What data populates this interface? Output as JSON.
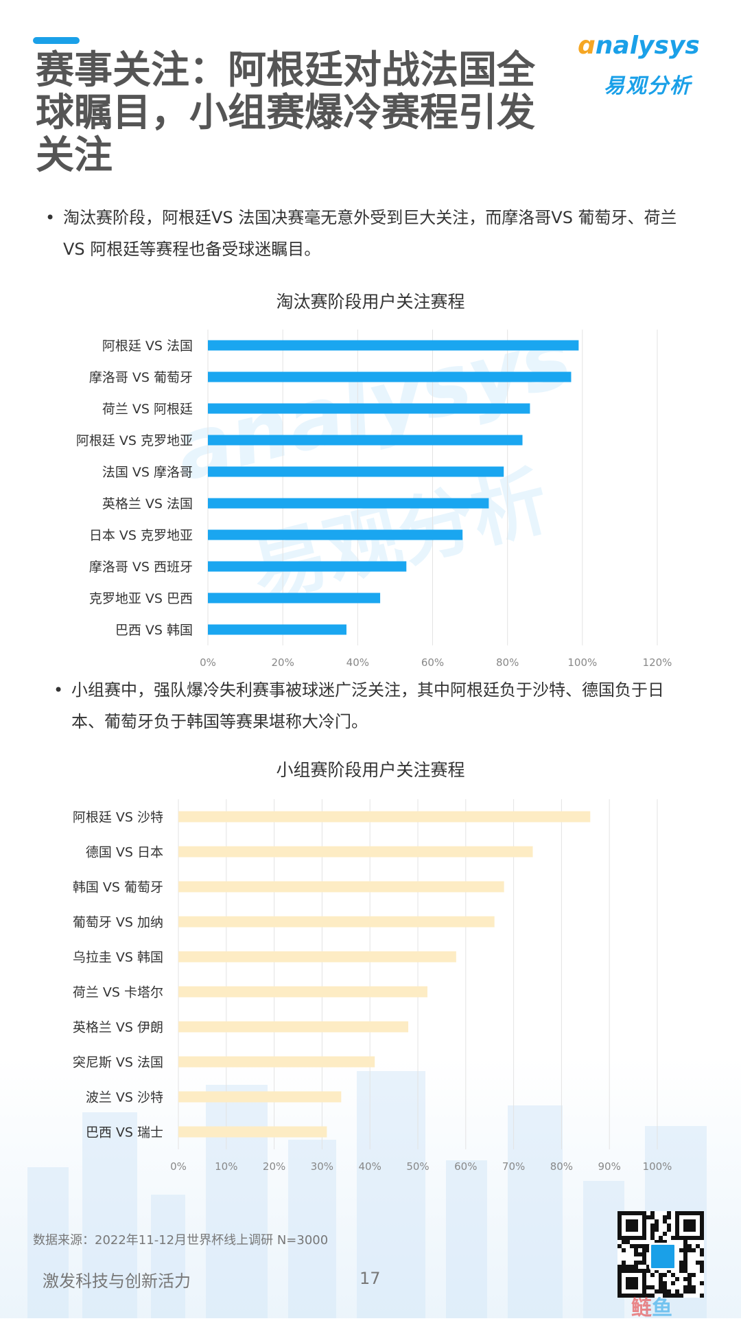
{
  "header": {
    "title": "赛事关注：阿根廷对战法国全球瞩目，小组赛爆冷赛程引发关注",
    "logo_en": "nalysys",
    "logo_cn": "易观分析",
    "accent_color": "#1aa0e8"
  },
  "bullets": [
    "淘汰赛阶段，阿根廷VS 法国决赛毫无意外受到巨大关注，而摩洛哥VS 葡萄牙、荷兰 VS 阿根廷等赛程也备受球迷瞩目。",
    "小组赛中，强队爆冷失利赛事被球迷广泛关注，其中阿根廷负于沙特、德国负于日本、葡萄牙负于韩国等赛果堪称大冷门。"
  ],
  "watermark": {
    "en": "analysys",
    "cn": "易观分析"
  },
  "chart_data": [
    {
      "type": "bar",
      "orientation": "horizontal",
      "title": "淘汰赛阶段用户关注赛程",
      "categories": [
        "阿根廷 VS 法国",
        "摩洛哥 VS 葡萄牙",
        "荷兰 VS 阿根廷",
        "阿根廷 VS 克罗地亚",
        "法国 VS 摩洛哥",
        "英格兰 VS 法国",
        "日本 VS 克罗地亚",
        "摩洛哥 VS 西班牙",
        "克罗地亚 VS 巴西",
        "巴西 VS 韩国"
      ],
      "values": [
        0.99,
        0.97,
        0.86,
        0.84,
        0.79,
        0.75,
        0.68,
        0.53,
        0.46,
        0.37
      ],
      "xlim": [
        0,
        1.2
      ],
      "ticks": [
        0,
        0.2,
        0.4,
        0.6,
        0.8,
        1.0,
        1.2
      ],
      "tick_labels": [
        "0%",
        "20%",
        "40%",
        "60%",
        "80%",
        "100%",
        "120%"
      ],
      "color": "#1aa6f0",
      "grid": true
    },
    {
      "type": "bar",
      "orientation": "horizontal",
      "title": "小组赛阶段用户关注赛程",
      "categories": [
        "阿根廷 VS 沙特",
        "德国 VS 日本",
        "韩国 VS 葡萄牙",
        "葡萄牙 VS 加纳",
        "乌拉圭 VS 韩国",
        "荷兰 VS 卡塔尔",
        "英格兰 VS 伊朗",
        "突尼斯 VS 法国",
        "波兰 VS 沙特",
        "巴西 VS 瑞士"
      ],
      "values": [
        0.86,
        0.74,
        0.68,
        0.66,
        0.58,
        0.52,
        0.48,
        0.41,
        0.34,
        0.31
      ],
      "xlim": [
        0,
        1.0
      ],
      "ticks": [
        0,
        0.1,
        0.2,
        0.3,
        0.4,
        0.5,
        0.6,
        0.7,
        0.8,
        0.9,
        1.0
      ],
      "tick_labels": [
        "0%",
        "10%",
        "20%",
        "30%",
        "40%",
        "50%",
        "60%",
        "70%",
        "80%",
        "90%",
        "100%"
      ],
      "color": "#fdecc4",
      "grid": true
    }
  ],
  "footer": {
    "source": "数据来源：2022年11-12月世界杯线上调研   N=3000",
    "slogan": "激发科技与创新活力",
    "page_number": "17",
    "corner_mark_a": "鲢",
    "corner_mark_b": "鱼"
  }
}
